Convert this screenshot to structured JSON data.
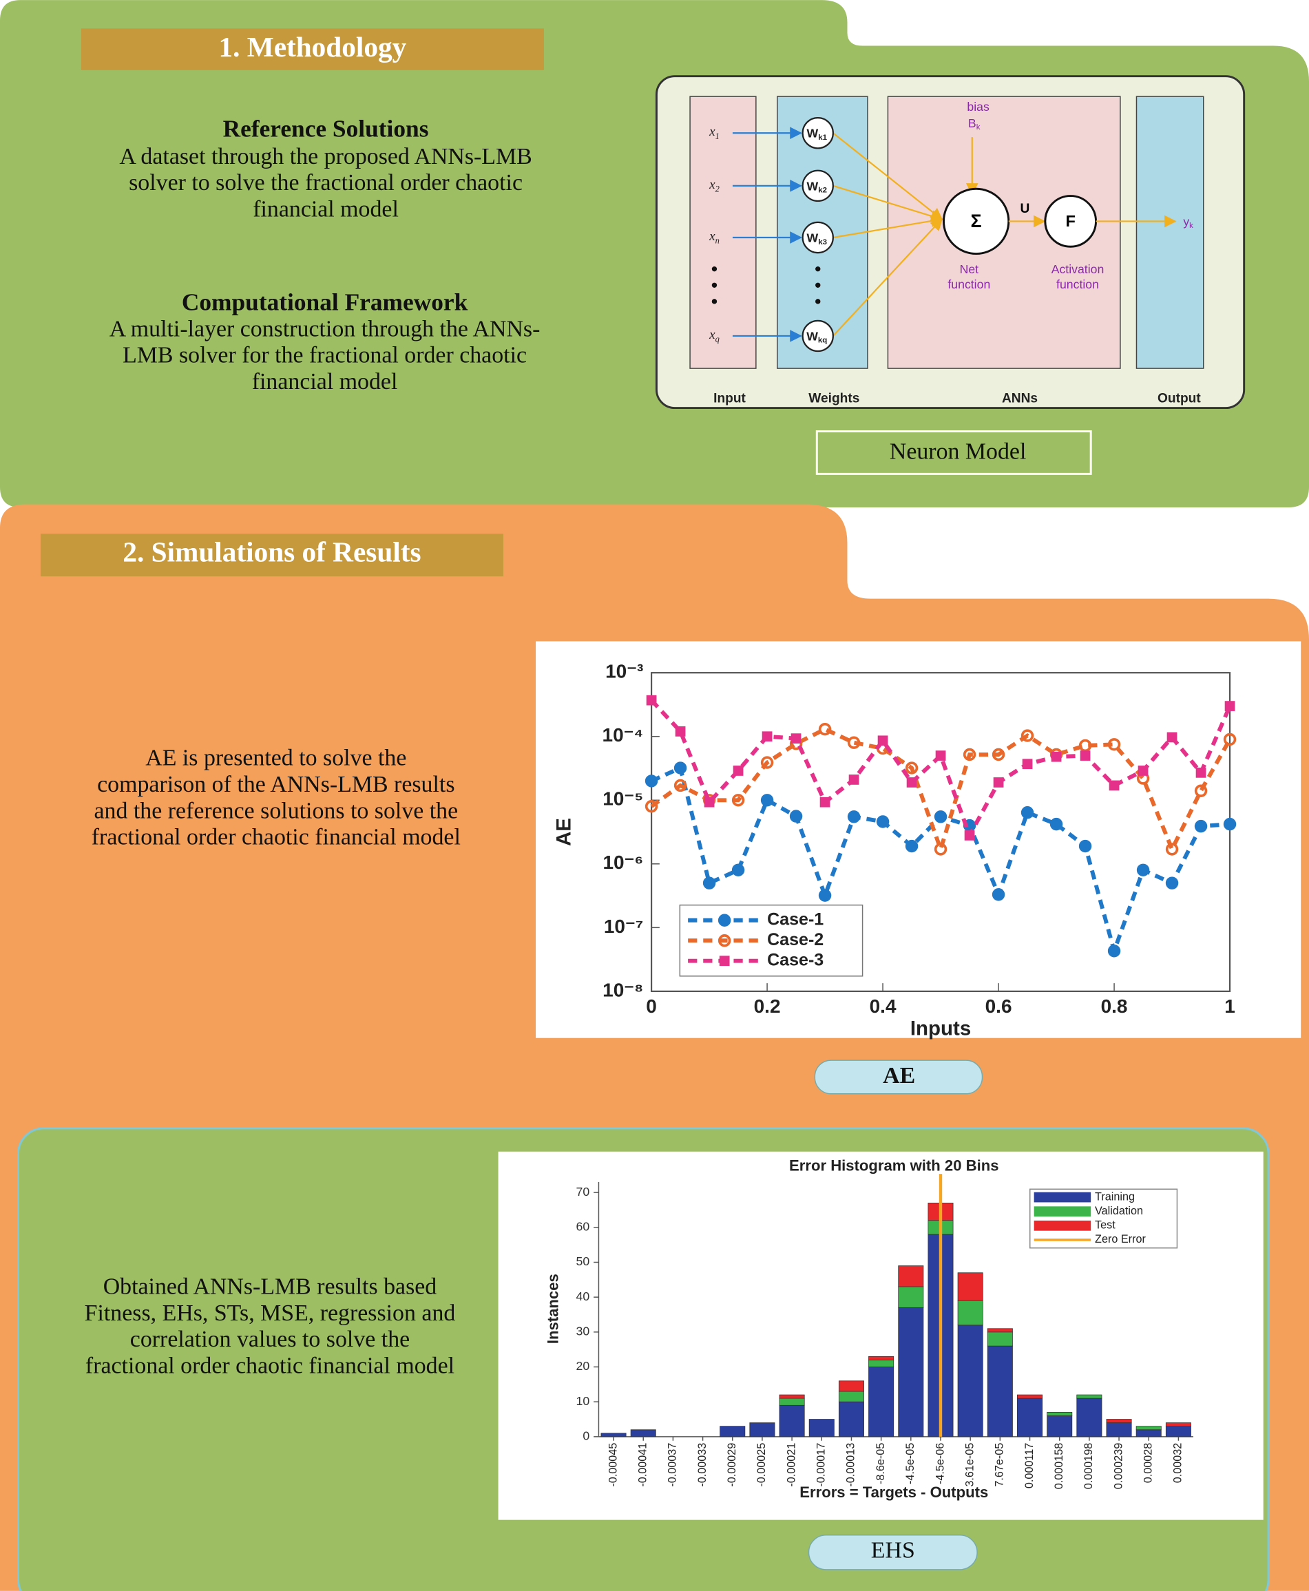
{
  "methodology": {
    "heading": "1. Methodology",
    "reference": {
      "title": "Reference Solutions",
      "lines": [
        "A dataset through the proposed ANNs-LMB",
        "solver to solve the fractional order chaotic",
        "financial model"
      ]
    },
    "framework": {
      "title": "Computational Framework",
      "lines": [
        "A multi-layer construction through the ANNs-",
        "LMB solver for the fractional order chaotic",
        "financial model"
      ]
    },
    "neuron_model": {
      "caption": "Neuron Model",
      "inputs": [
        {
          "symbol": "x",
          "index": "1"
        },
        {
          "symbol": "x",
          "index": "2"
        },
        {
          "symbol": "x",
          "index": "n"
        },
        {
          "symbol": "x",
          "index": "q"
        }
      ],
      "weights": [
        {
          "symbol": "W",
          "index": "k1"
        },
        {
          "symbol": "W",
          "index": "k2"
        },
        {
          "symbol": "W",
          "index": "k3"
        },
        {
          "symbol": "W",
          "index": "kq"
        }
      ],
      "bias": {
        "label": "bias",
        "symbol": "B",
        "index": "k"
      },
      "sum": "Σ",
      "activation": "F",
      "net_output": "U",
      "net_label": [
        "Net",
        "function"
      ],
      "activation_label": [
        "Activation",
        "function"
      ],
      "output": {
        "symbol": "y",
        "index": "k"
      },
      "columns": [
        "Input",
        "Weights",
        "ANNs",
        "Output"
      ]
    }
  },
  "simulations": {
    "heading": "2. Simulations of Results",
    "ae_text": [
      "AE is presented to solve the",
      "comparison of the ANNs-LMB results",
      "and the reference solutions to solve the",
      "fractional order chaotic financial model"
    ],
    "ae_caption": "AE",
    "ehs_text": [
      "Obtained ANNs-LMB results based",
      "Fitness, EHs, STs, MSE, regression and",
      "correlation values to solve the",
      "fractional order chaotic financial model"
    ],
    "ehs_caption": "EHS"
  },
  "chart_data": [
    {
      "type": "line",
      "xlabel": "Inputs",
      "ylabel": "AE",
      "log_y": true,
      "x": [
        0,
        0.05,
        0.1,
        0.15,
        0.2,
        0.25,
        0.3,
        0.35,
        0.4,
        0.45,
        0.5,
        0.55,
        0.6,
        0.65,
        0.7,
        0.75,
        0.8,
        0.85,
        0.9,
        0.95,
        1
      ],
      "xlim": [
        0,
        1
      ],
      "xticks": [
        0,
        0.2,
        0.4,
        0.6,
        0.8,
        1
      ],
      "ylim": [
        1e-08,
        0.001
      ],
      "yticks": [
        {
          "value": 1e-08,
          "label": "10⁻⁸"
        },
        {
          "value": 1e-07,
          "label": "10⁻⁷"
        },
        {
          "value": 1e-06,
          "label": "10⁻⁶"
        },
        {
          "value": 1e-05,
          "label": "10⁻⁵"
        },
        {
          "value": 0.0001,
          "label": "10⁻⁴"
        },
        {
          "value": 0.001,
          "label": "10⁻³"
        }
      ],
      "legend": "lower left",
      "series": [
        {
          "name": "Case-1",
          "color": "#1f78c8",
          "marker": "circle",
          "values": [
            2e-05,
            3.2e-05,
            5e-07,
            8e-07,
            1e-05,
            5.6e-06,
            3.2e-07,
            5.5e-06,
            4.6e-06,
            1.9e-06,
            5.5e-06,
            4e-06,
            3.3e-07,
            6.4e-06,
            4.2e-06,
            1.9e-06,
            4.3e-08,
            8e-07,
            5e-07,
            3.9e-06,
            4.2e-06
          ]
        },
        {
          "name": "Case-2",
          "color": "#e8692b",
          "marker": "open-circle",
          "values": [
            8e-06,
            1.7e-05,
            1e-05,
            1e-05,
            3.9e-05,
            7.7e-05,
            0.00013,
            8e-05,
            6.5e-05,
            3.2e-05,
            1.7e-06,
            5.2e-05,
            5.2e-05,
            0.000103,
            5.2e-05,
            7.2e-05,
            7.5e-05,
            2.2e-05,
            1.7e-06,
            1.4e-05,
            9e-05
          ]
        },
        {
          "name": "Case-3",
          "color": "#e6318a",
          "marker": "square",
          "values": [
            0.00037,
            0.00012,
            9.3e-06,
            2.9e-05,
            0.0001,
            9.3e-05,
            9.3e-06,
            2.1e-05,
            8.6e-05,
            1.9e-05,
            5e-05,
            2.8e-06,
            1.9e-05,
            3.7e-05,
            4.8e-05,
            5e-05,
            1.7e-05,
            2.9e-05,
            9.7e-05,
            2.7e-05,
            0.0003
          ]
        }
      ]
    },
    {
      "type": "bar",
      "stacked": true,
      "title": "Error Histogram with 20 Bins",
      "xlabel": "Errors = Targets - Outputs",
      "ylabel": "Instances",
      "categories": [
        "-0.00045",
        "-0.00041",
        "-0.00037",
        "-0.00033",
        "-0.00029",
        "-0.00025",
        "-0.00021",
        "-0.00017",
        "-0.00013",
        "-8.6e-05",
        "-4.5e-05",
        "-4.5e-06",
        "3.61e-05",
        "7.67e-05",
        "0.000117",
        "0.000158",
        "0.000198",
        "0.000239",
        "0.00028",
        "0.00032"
      ],
      "ylim": [
        0,
        73
      ],
      "yticks": [
        0,
        10,
        20,
        30,
        40,
        50,
        60,
        70
      ],
      "legend": "upper right",
      "series": [
        {
          "name": "Training",
          "color": "#2b3f9e",
          "values": [
            1,
            2,
            0,
            0,
            3,
            4,
            9,
            5,
            10,
            20,
            37,
            58,
            32,
            26,
            11,
            6,
            11,
            4,
            2,
            3
          ]
        },
        {
          "name": "Validation",
          "color": "#3bb54a",
          "values": [
            0,
            0,
            0,
            0,
            0,
            0,
            2,
            0,
            3,
            2,
            6,
            4,
            7,
            4,
            0,
            1,
            1,
            0,
            1,
            0
          ]
        },
        {
          "name": "Test",
          "color": "#e8282b",
          "values": [
            0,
            0,
            0,
            0,
            0,
            0,
            1,
            0,
            3,
            1,
            6,
            5,
            8,
            1,
            1,
            0,
            0,
            1,
            0,
            1
          ]
        }
      ],
      "reference_lines": [
        {
          "name": "Zero Error",
          "color": "#f5a623",
          "category": "-4.5e-06"
        }
      ]
    }
  ]
}
